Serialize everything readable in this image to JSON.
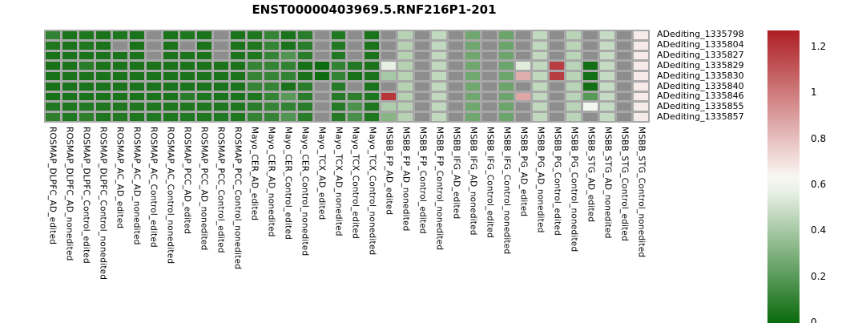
{
  "chart_data": {
    "type": "heatmap",
    "title": "ENST00000403969.5.RNF216P1-201",
    "rows": [
      "ADediting_1335798",
      "ADediting_1335804",
      "ADediting_1335827",
      "ADediting_1335829",
      "ADediting_1335830",
      "ADediting_1335840",
      "ADediting_1335846",
      "ADediting_1335855",
      "ADediting_1335857"
    ],
    "columns": [
      "ROSMAP_DLPFC_AD_edited",
      "ROSMAP_DLPFC_AD_nonedited",
      "ROSMAP_DLPFC_Control_edited",
      "ROSMAP_DLPFC_Control_nonedited",
      "ROSMAP_AC_AD_edited",
      "ROSMAP_AC_AD_nonedited",
      "ROSMAP_AC_Control_edited",
      "ROSMAP_AC_Control_nonedited",
      "ROSMAP_PCC_AD_edited",
      "ROSMAP_PCC_AD_nonedited",
      "ROSMAP_PCC_Control_edited",
      "ROSMAP_PCC_Control_nonedited",
      "Mayo_CER_AD_edited",
      "Mayo_CER_AD_nonedited",
      "Mayo_CER_Control_edited",
      "Mayo_CER_Control_nonedited",
      "Mayo_TCX_AD_edited",
      "Mayo_TCX_AD_nonedited",
      "Mayo_TCX_Control_edited",
      "Mayo_TCX_Control_nonedited",
      "MSBB_FP_AD_edited",
      "MSBB_FP_AD_nonedited",
      "MSBB_FP_Control_edited",
      "MSBB_FP_Control_nonedited",
      "MSBB_IFG_AD_edited",
      "MSBB_IFG_AD_nonedited",
      "MSBB_IFG_Control_edited",
      "MSBB_IFG_Control_nonedited",
      "MSBB_PG_AD_edited",
      "MSBB_PG_AD_nonedited",
      "MSBB_PG_Control_edited",
      "MSBB_PG_Control_nonedited",
      "MSBB_STG_AD_edited",
      "MSBB_STG_AD_nonedited",
      "MSBB_STG_Control_edited",
      "MSBB_STG_Control_nonedited"
    ],
    "values": [
      [
        0.1,
        0.04,
        0.05,
        0.04,
        0.05,
        0.04,
        null,
        0.04,
        0.05,
        0.04,
        null,
        0.04,
        0.05,
        0.11,
        0.04,
        0.08,
        null,
        0.06,
        null,
        0.04,
        null,
        0.44,
        null,
        0.47,
        null,
        0.26,
        null,
        0.25,
        null,
        0.47,
        null,
        0.45,
        null,
        0.48,
        null,
        0.67
      ],
      [
        0.05,
        0.04,
        0.05,
        0.04,
        null,
        0.04,
        null,
        0.04,
        null,
        0.04,
        null,
        0.04,
        0.05,
        0.11,
        0.04,
        0.08,
        null,
        0.06,
        null,
        0.04,
        null,
        0.44,
        null,
        0.47,
        null,
        0.26,
        null,
        0.25,
        null,
        0.47,
        null,
        0.45,
        null,
        0.48,
        null,
        0.67
      ],
      [
        0.03,
        0.04,
        0.04,
        0.04,
        0.04,
        0.04,
        null,
        0.04,
        0.04,
        0.04,
        null,
        0.04,
        0.05,
        0.11,
        0.18,
        0.08,
        null,
        0.06,
        null,
        0.04,
        null,
        0.44,
        null,
        0.47,
        null,
        0.26,
        null,
        0.25,
        null,
        0.47,
        null,
        0.45,
        null,
        0.48,
        null,
        0.67
      ],
      [
        0.03,
        0.04,
        0.08,
        0.04,
        0.04,
        0.04,
        0.04,
        0.04,
        0.04,
        0.04,
        0.04,
        0.04,
        0.11,
        0.11,
        0.1,
        0.03,
        0.01,
        0.1,
        0.06,
        0.04,
        0.57,
        0.44,
        null,
        0.47,
        null,
        0.26,
        null,
        0.25,
        0.55,
        0.47,
        1.18,
        0.45,
        0.02,
        0.48,
        null,
        0.67
      ],
      [
        0.03,
        0.04,
        0.04,
        0.04,
        0.04,
        0.04,
        0.04,
        0.04,
        0.04,
        0.04,
        0.04,
        0.04,
        0.11,
        0.11,
        0.1,
        0.03,
        0.01,
        0.1,
        0.03,
        0.04,
        0.4,
        0.44,
        null,
        0.47,
        null,
        0.26,
        null,
        0.25,
        0.85,
        0.47,
        1.18,
        0.45,
        0.02,
        0.48,
        null,
        0.67
      ],
      [
        0.03,
        0.04,
        0.04,
        0.04,
        0.04,
        0.04,
        0.04,
        0.04,
        0.04,
        0.04,
        0.04,
        0.04,
        0.11,
        0.11,
        0.04,
        0.08,
        null,
        0.07,
        null,
        0.04,
        null,
        0.44,
        null,
        0.47,
        null,
        0.26,
        null,
        0.25,
        null,
        0.47,
        null,
        0.45,
        0.02,
        0.48,
        null,
        0.67
      ],
      [
        0.03,
        0.04,
        0.04,
        0.04,
        0.04,
        0.04,
        0.04,
        0.04,
        0.08,
        0.05,
        0.04,
        0.04,
        0.05,
        0.11,
        0.2,
        0.08,
        null,
        0.07,
        0.09,
        0.05,
        1.2,
        0.44,
        null,
        0.47,
        null,
        0.26,
        null,
        0.25,
        0.87,
        0.47,
        null,
        0.45,
        0.2,
        0.48,
        null,
        0.67
      ],
      [
        0.06,
        0.05,
        0.06,
        0.05,
        0.05,
        0.05,
        0.05,
        0.05,
        0.05,
        0.05,
        0.05,
        0.05,
        0.08,
        0.11,
        0.1,
        0.08,
        null,
        0.07,
        0.17,
        0.05,
        0.42,
        0.44,
        null,
        0.47,
        null,
        0.26,
        null,
        0.25,
        null,
        0.47,
        null,
        0.45,
        0.6,
        0.48,
        null,
        0.67
      ],
      [
        0.09,
        0.06,
        0.09,
        0.05,
        0.06,
        0.05,
        0.06,
        0.05,
        0.06,
        0.05,
        0.06,
        0.05,
        0.11,
        0.11,
        0.18,
        0.08,
        null,
        0.07,
        0.16,
        0.05,
        0.32,
        0.44,
        null,
        0.47,
        null,
        0.26,
        null,
        0.25,
        null,
        0.47,
        null,
        0.45,
        null,
        0.48,
        null,
        0.67
      ]
    ],
    "colorbar": {
      "ticks": [
        "1.2",
        "1",
        "0.8",
        "0.6",
        "0.4",
        "0.2",
        "0"
      ],
      "min": 0,
      "max": 1.27,
      "white_point": 0.62,
      "color_low": "#0a6a0c",
      "color_mid": "#fcfcf8",
      "color_high": "#ad1e23",
      "missing_color": "#8d8d8d",
      "grid_background": "#a8a8a8",
      "position": "right"
    },
    "legend_position": "right",
    "xlabel": "",
    "ylabel": ""
  }
}
